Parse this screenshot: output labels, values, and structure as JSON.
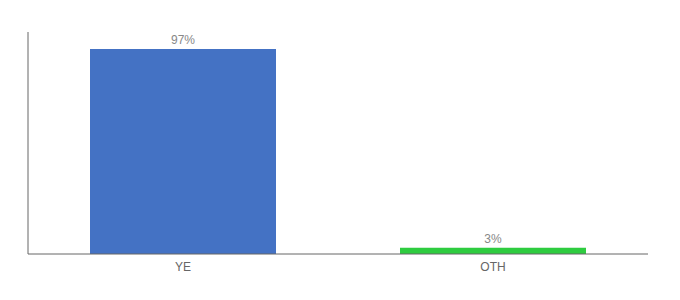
{
  "chart_data": {
    "type": "bar",
    "categories": [
      "YE",
      "OTH"
    ],
    "values": [
      97,
      3
    ],
    "value_labels": [
      "97%",
      "3%"
    ],
    "data_labels": true,
    "colors": [
      "#4472c4",
      "#2ecc40"
    ],
    "ylim": [
      0,
      105
    ],
    "tick_labels": "x",
    "grid": false
  }
}
